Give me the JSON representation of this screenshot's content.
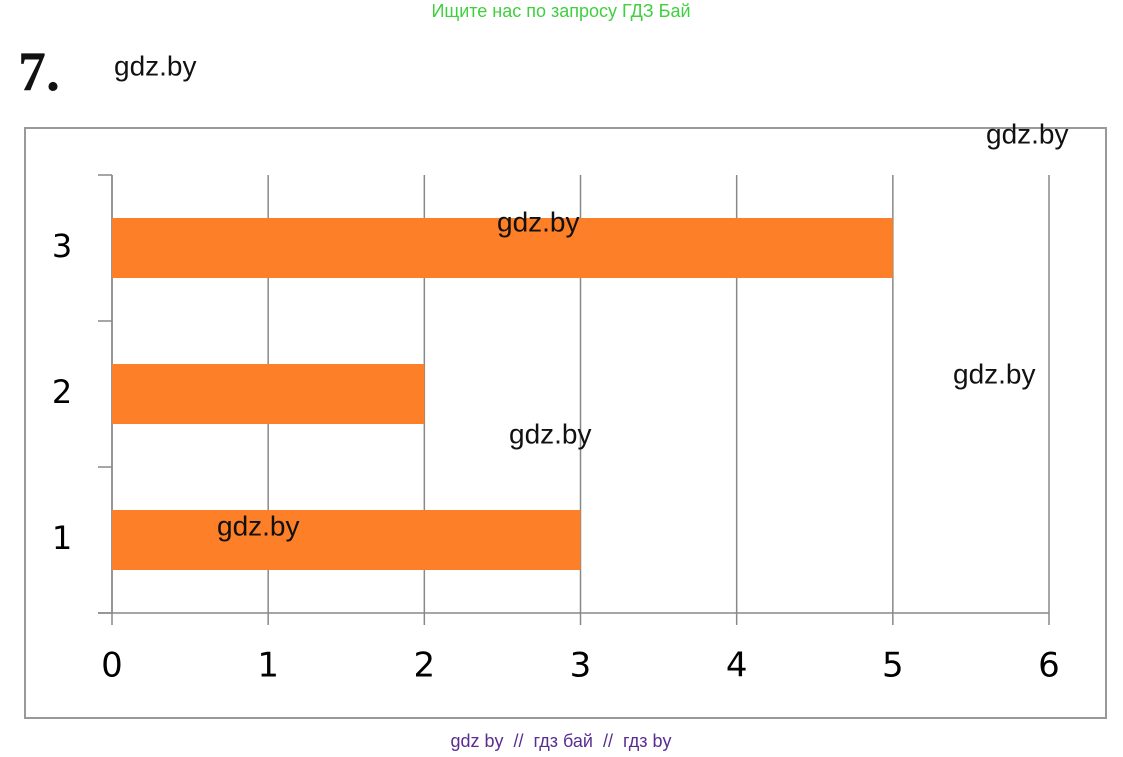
{
  "header": "Ищите нас по запросу ГДЗ Бай",
  "task_number": "7.",
  "watermarks": [
    "gdz.by",
    "gdz.by",
    "gdz.by",
    "gdz.by",
    "gdz.by",
    "gdz.by"
  ],
  "footer": "gdz by  //  гдз бай  //  гдз by",
  "chart_data": {
    "type": "bar",
    "orientation": "horizontal",
    "categories": [
      "1",
      "2",
      "3"
    ],
    "values": [
      3,
      2,
      5
    ],
    "color": "#fd7f27",
    "xlim": [
      0,
      6
    ],
    "xticks": [
      0,
      1,
      2,
      3,
      4,
      5,
      6
    ],
    "grid": true
  }
}
